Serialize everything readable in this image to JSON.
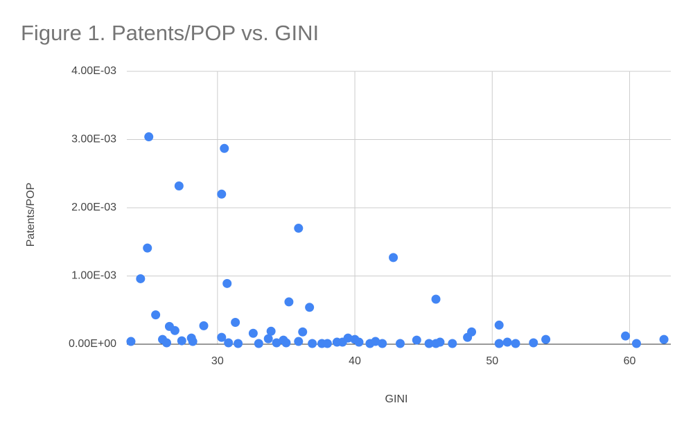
{
  "chart_data": {
    "type": "scatter",
    "title": "Figure 1. Patents/POP vs. GINI",
    "x_label": "GINI",
    "y_label": "Patents/POP",
    "color": "#4285f4",
    "grid": true,
    "xlim": [
      23.4,
      63
    ],
    "xticks": [
      30,
      40,
      50,
      60
    ],
    "ylim": [
      0,
      0.004
    ],
    "yticks": [
      {
        "value": 0,
        "label": "0.00E+00"
      },
      {
        "value": 0.001,
        "label": "1.00E-03"
      },
      {
        "value": 0.002,
        "label": "2.00E-03"
      },
      {
        "value": 0.003,
        "label": "3.00E-03"
      },
      {
        "value": 0.004,
        "label": "4.00E-03"
      }
    ],
    "x": [
      23.7,
      25.0,
      24.9,
      24.4,
      25.5,
      27.2,
      26.5,
      26.9,
      26.0,
      26.3,
      27.4,
      28.1,
      28.2,
      29.0,
      30.5,
      30.3,
      30.7,
      30.3,
      30.8,
      31.3,
      31.5,
      32.6,
      33.0,
      33.7,
      33.9,
      34.3,
      34.8,
      35.0,
      35.2,
      35.9,
      35.9,
      36.2,
      36.7,
      36.9,
      37.6,
      38.0,
      38.7,
      39.1,
      39.5,
      40.0,
      40.3,
      41.1,
      41.5,
      42.0,
      42.8,
      43.3,
      44.5,
      45.4,
      45.9,
      46.2,
      45.9,
      47.1,
      48.2,
      48.5,
      50.5,
      50.5,
      51.1,
      51.7,
      53.0,
      53.9,
      59.7,
      60.5,
      62.5
    ],
    "values": [
      4e-05,
      0.00304,
      0.00141,
      0.00096,
      0.00043,
      0.00232,
      0.00026,
      0.0002,
      7e-05,
      2e-05,
      5e-05,
      9e-05,
      4e-05,
      0.00027,
      0.00287,
      0.0022,
      0.00089,
      0.0001,
      2e-05,
      0.00032,
      1e-05,
      0.00016,
      1e-05,
      8e-05,
      0.00019,
      2e-05,
      6e-05,
      2e-05,
      0.00062,
      0.0017,
      4e-05,
      0.00018,
      0.00054,
      1e-05,
      1e-05,
      1e-05,
      3e-05,
      3e-05,
      9e-05,
      7e-05,
      3e-05,
      1e-05,
      4e-05,
      1e-05,
      0.00127,
      1e-05,
      6e-05,
      1e-05,
      1e-05,
      3e-05,
      0.00066,
      1e-05,
      0.0001,
      0.00018,
      0.00028,
      1e-05,
      3e-05,
      1e-05,
      2e-05,
      7e-05,
      0.00012,
      1e-05,
      7e-05
    ]
  }
}
